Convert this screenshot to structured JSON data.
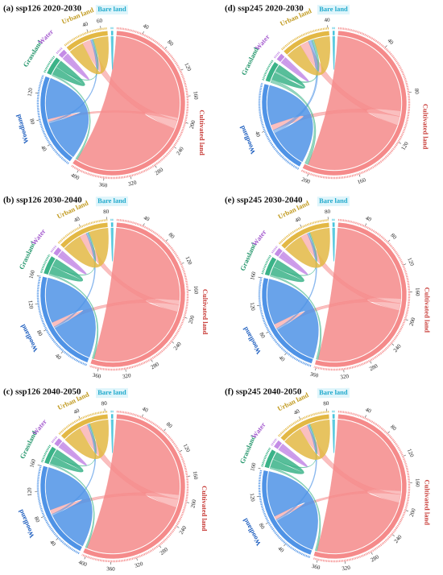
{
  "chart_data": [
    {
      "type": "chord",
      "title": "(a) ssp126 2020-2030",
      "groups": [
        {
          "name": "Cultivated land",
          "color": "#f58a8a",
          "label_color": "#c9403c",
          "ticks": [
            40,
            80,
            120,
            160,
            200,
            240,
            280,
            320,
            360,
            400
          ]
        },
        {
          "name": "Woodland",
          "color": "#4f93e6",
          "label_color": "#1f5fbf",
          "ticks": [
            40,
            80,
            120
          ]
        },
        {
          "name": "Grassland",
          "color": "#3bb388",
          "label_color": "#22956a",
          "ticks": []
        },
        {
          "name": "Water",
          "color": "#c48ce6",
          "label_color": "#a55ccf",
          "ticks": []
        },
        {
          "name": "Urban land",
          "color": "#e3b844",
          "label_color": "#c19a1f",
          "ticks": [
            40,
            60
          ]
        },
        {
          "name": "Bare land",
          "color": "#48c4dc",
          "label_color": "#22aacc",
          "ticks": []
        }
      ],
      "matrix": [
        [
          195,
          5,
          0,
          0,
          15,
          0
        ],
        [
          0,
          70,
          0,
          0,
          3,
          0
        ],
        [
          3,
          0,
          12,
          0,
          2,
          0
        ],
        [
          0,
          0,
          0,
          6,
          0,
          0
        ],
        [
          0,
          0,
          0,
          0,
          25,
          0
        ],
        [
          0,
          0,
          0,
          0,
          0,
          2
        ]
      ]
    },
    {
      "type": "chord",
      "title": "(d) ssp245 2020-2030",
      "groups": [
        {
          "name": "Cultivated land",
          "color": "#f58a8a",
          "label_color": "#c9403c",
          "ticks": [
            40,
            80,
            120,
            160,
            200
          ]
        },
        {
          "name": "Woodland",
          "color": "#4f93e6",
          "label_color": "#1f5fbf",
          "ticks": [
            40
          ]
        },
        {
          "name": "Grassland",
          "color": "#3bb388",
          "label_color": "#22956a",
          "ticks": []
        },
        {
          "name": "Water",
          "color": "#c48ce6",
          "label_color": "#a55ccf",
          "ticks": []
        },
        {
          "name": "Urban land",
          "color": "#e3b844",
          "label_color": "#c19a1f",
          "ticks": [
            40
          ]
        },
        {
          "name": "Bare land",
          "color": "#48c4dc",
          "label_color": "#22aacc",
          "ticks": []
        }
      ],
      "matrix": [
        [
          95,
          5,
          0,
          0,
          8,
          0
        ],
        [
          0,
          35,
          0,
          0,
          3,
          0
        ],
        [
          3,
          0,
          6,
          0,
          2,
          0
        ],
        [
          0,
          0,
          0,
          3,
          0,
          0
        ],
        [
          0,
          0,
          0,
          0,
          14,
          0
        ],
        [
          0,
          0,
          0,
          0,
          0,
          1
        ]
      ]
    },
    {
      "type": "chord",
      "title": "(b) ssp126 2030-2040",
      "groups": [
        {
          "name": "Cultivated land",
          "color": "#f58a8a",
          "label_color": "#c9403c",
          "ticks": [
            40,
            80,
            120,
            160,
            200,
            240,
            280,
            320,
            360
          ]
        },
        {
          "name": "Woodland",
          "color": "#4f93e6",
          "label_color": "#1f5fbf",
          "ticks": [
            40,
            80,
            120,
            160
          ]
        },
        {
          "name": "Grassland",
          "color": "#3bb388",
          "label_color": "#22956a",
          "ticks": []
        },
        {
          "name": "Water",
          "color": "#c48ce6",
          "label_color": "#a55ccf",
          "ticks": []
        },
        {
          "name": "Urban land",
          "color": "#e3b844",
          "label_color": "#c19a1f",
          "ticks": [
            40,
            80
          ]
        },
        {
          "name": "Bare land",
          "color": "#48c4dc",
          "label_color": "#22aacc",
          "ticks": []
        }
      ],
      "matrix": [
        [
          175,
          8,
          0,
          0,
          12,
          0
        ],
        [
          0,
          75,
          0,
          0,
          3,
          0
        ],
        [
          3,
          0,
          12,
          0,
          2,
          0
        ],
        [
          0,
          0,
          0,
          6,
          0,
          0
        ],
        [
          0,
          0,
          0,
          0,
          32,
          0
        ],
        [
          0,
          0,
          0,
          0,
          0,
          2
        ]
      ]
    },
    {
      "type": "chord",
      "title": "(e) ssp245 2030-2040",
      "groups": [
        {
          "name": "Cultivated land",
          "color": "#f58a8a",
          "label_color": "#c9403c",
          "ticks": [
            40,
            80,
            120,
            160,
            200,
            240,
            280,
            320,
            360
          ]
        },
        {
          "name": "Woodland",
          "color": "#4f93e6",
          "label_color": "#1f5fbf",
          "ticks": [
            40,
            80,
            120,
            160
          ]
        },
        {
          "name": "Grassland",
          "color": "#3bb388",
          "label_color": "#22956a",
          "ticks": []
        },
        {
          "name": "Water",
          "color": "#c48ce6",
          "label_color": "#a55ccf",
          "ticks": []
        },
        {
          "name": "Urban land",
          "color": "#e3b844",
          "label_color": "#c19a1f",
          "ticks": [
            40,
            80
          ]
        },
        {
          "name": "Bare land",
          "color": "#48c4dc",
          "label_color": "#22aacc",
          "ticks": []
        }
      ],
      "matrix": [
        [
          170,
          8,
          0,
          0,
          12,
          0
        ],
        [
          0,
          75,
          0,
          0,
          3,
          0
        ],
        [
          3,
          0,
          12,
          0,
          2,
          0
        ],
        [
          0,
          0,
          0,
          6,
          0,
          0
        ],
        [
          0,
          0,
          0,
          0,
          32,
          0
        ],
        [
          0,
          0,
          0,
          0,
          0,
          2
        ]
      ]
    },
    {
      "type": "chord",
      "title": "(c) ssp126 2040-2050",
      "groups": [
        {
          "name": "Cultivated land",
          "color": "#f58a8a",
          "label_color": "#c9403c",
          "ticks": [
            40,
            80,
            120,
            160,
            200,
            240,
            280,
            320,
            360,
            400
          ]
        },
        {
          "name": "Woodland",
          "color": "#4f93e6",
          "label_color": "#1f5fbf",
          "ticks": [
            40,
            80,
            120,
            160
          ]
        },
        {
          "name": "Grassland",
          "color": "#3bb388",
          "label_color": "#22956a",
          "ticks": []
        },
        {
          "name": "Water",
          "color": "#c48ce6",
          "label_color": "#a55ccf",
          "ticks": []
        },
        {
          "name": "Urban land",
          "color": "#e3b844",
          "label_color": "#c19a1f",
          "ticks": [
            40,
            80
          ]
        },
        {
          "name": "Bare land",
          "color": "#48c4dc",
          "label_color": "#22aacc",
          "ticks": []
        }
      ],
      "matrix": [
        [
          190,
          8,
          0,
          0,
          15,
          0
        ],
        [
          0,
          75,
          0,
          0,
          3,
          0
        ],
        [
          3,
          0,
          12,
          0,
          2,
          0
        ],
        [
          0,
          0,
          0,
          6,
          0,
          0
        ],
        [
          0,
          0,
          0,
          0,
          32,
          0
        ],
        [
          0,
          0,
          0,
          0,
          0,
          2
        ]
      ]
    },
    {
      "type": "chord",
      "title": "(f) ssp245 2040-2050",
      "groups": [
        {
          "name": "Cultivated land",
          "color": "#f58a8a",
          "label_color": "#c9403c",
          "ticks": [
            40,
            80,
            120,
            160,
            200,
            240,
            280,
            320,
            360
          ]
        },
        {
          "name": "Woodland",
          "color": "#4f93e6",
          "label_color": "#1f5fbf",
          "ticks": [
            40,
            80,
            120,
            160
          ]
        },
        {
          "name": "Grassland",
          "color": "#3bb388",
          "label_color": "#22956a",
          "ticks": []
        },
        {
          "name": "Water",
          "color": "#c48ce6",
          "label_color": "#a55ccf",
          "ticks": []
        },
        {
          "name": "Urban land",
          "color": "#e3b844",
          "label_color": "#c19a1f",
          "ticks": [
            40,
            80
          ]
        },
        {
          "name": "Bare land",
          "color": "#48c4dc",
          "label_color": "#22aacc",
          "ticks": []
        }
      ],
      "matrix": [
        [
          172,
          6,
          0,
          0,
          14,
          0
        ],
        [
          0,
          75,
          0,
          0,
          3,
          0
        ],
        [
          3,
          0,
          12,
          0,
          2,
          0
        ],
        [
          0,
          0,
          0,
          6,
          0,
          0
        ],
        [
          0,
          0,
          0,
          0,
          32,
          0
        ],
        [
          0,
          0,
          0,
          0,
          0,
          2
        ]
      ]
    }
  ]
}
